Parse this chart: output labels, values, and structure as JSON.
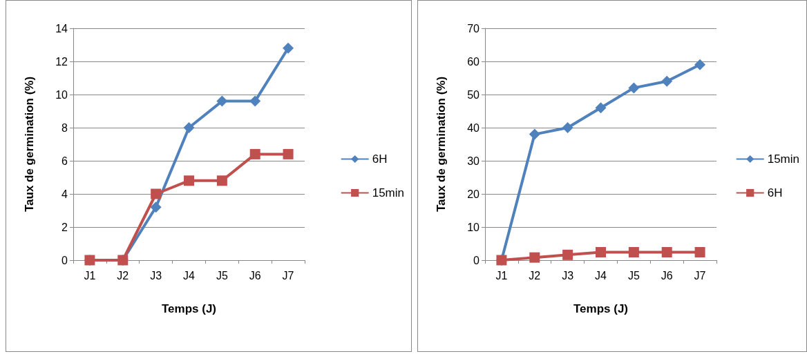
{
  "chart_data": [
    {
      "type": "line",
      "xlabel": "Temps (J)",
      "ylabel": "Taux de germination (%)",
      "categories": [
        "J1",
        "J2",
        "J3",
        "J4",
        "J5",
        "J6",
        "J7"
      ],
      "ylim": [
        0,
        14
      ],
      "yticks": [
        0,
        2,
        4,
        6,
        8,
        10,
        12,
        14
      ],
      "grid": "y",
      "legend": "right",
      "series": [
        {
          "name": "6H",
          "color": "#4f81bd",
          "marker": "diamond",
          "values": [
            0,
            0,
            3.2,
            8,
            9.6,
            9.6,
            12.8
          ]
        },
        {
          "name": "15min",
          "color": "#c0504d",
          "marker": "square",
          "values": [
            0,
            0,
            4,
            4.8,
            4.8,
            6.4,
            6.4
          ]
        }
      ]
    },
    {
      "type": "line",
      "xlabel": "Temps (J)",
      "ylabel": "Taux de germination (%)",
      "categories": [
        "J1",
        "J2",
        "J3",
        "J4",
        "J5",
        "J6",
        "J7"
      ],
      "ylim": [
        0,
        70
      ],
      "yticks": [
        0,
        10,
        20,
        30,
        40,
        50,
        60,
        70
      ],
      "grid": "y",
      "legend": "right",
      "series": [
        {
          "name": "15min",
          "color": "#4f81bd",
          "marker": "diamond",
          "values": [
            0,
            38,
            40,
            46,
            52,
            54,
            59
          ]
        },
        {
          "name": "6H",
          "color": "#c0504d",
          "marker": "square",
          "values": [
            0,
            0.8,
            1.6,
            2.4,
            2.4,
            2.4,
            2.4
          ]
        }
      ]
    }
  ]
}
